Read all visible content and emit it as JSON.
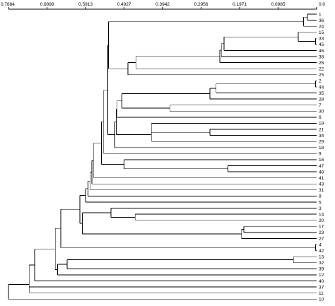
{
  "axis": {
    "ticks": [
      "0.7884",
      "0.6898",
      "0.5913",
      "0.4927",
      "0.3942",
      "0.2956",
      "0.1971",
      "0.0985",
      "0.0"
    ],
    "tick_values": [
      0.7884,
      0.6898,
      0.5913,
      0.4927,
      0.3942,
      0.2956,
      0.1971,
      0.0985,
      0.0
    ],
    "range": [
      0.7884,
      0.0
    ]
  },
  "leaves": [
    "1",
    "36",
    "24",
    "15",
    "33",
    "45",
    "46",
    "38",
    "26",
    "22",
    "25",
    "2",
    "44",
    "35",
    "28",
    "7",
    "30",
    "6",
    "19",
    "21",
    "34",
    "29",
    "18",
    "9",
    "16",
    "47",
    "48",
    "41",
    "43",
    "31",
    "8",
    "5",
    "3",
    "14",
    "20",
    "17",
    "23",
    "27",
    "4",
    "42",
    "13",
    "32",
    "39",
    "12",
    "40",
    "37",
    "11",
    "10"
  ],
  "merges": [
    {
      "a": "L1",
      "b": "L36",
      "h": 0.0235,
      "id": "n1"
    },
    {
      "a": "n1",
      "b": "L24",
      "h": 0.0336,
      "id": "n2"
    },
    {
      "a": "L33",
      "b": "L45",
      "h": 0.0025,
      "id": "n3"
    },
    {
      "a": "L15",
      "b": "n3",
      "h": 0.0471,
      "id": "n4"
    },
    {
      "a": "n4",
      "b": "L46",
      "h": 0.237,
      "id": "n5"
    },
    {
      "a": "n5",
      "b": "L38",
      "h": 0.2438,
      "id": "n6"
    },
    {
      "a": "n6",
      "b": "L26",
      "h": 0.2479,
      "id": "n7"
    },
    {
      "a": "n7",
      "b": "L22",
      "h": 0.4626,
      "id": "n8"
    },
    {
      "a": "n8",
      "b": "L25",
      "h": 0.4829,
      "id": "n9"
    },
    {
      "a": "n2",
      "b": "n9",
      "h": 0.5325,
      "id": "n10"
    },
    {
      "a": "L2",
      "b": "L44",
      "h": 0.0025,
      "id": "n11"
    },
    {
      "a": "n11",
      "b": "L35",
      "h": 0.2571,
      "id": "n12"
    },
    {
      "a": "n12",
      "b": "L28",
      "h": 0.2731,
      "id": "n13"
    },
    {
      "a": "L7",
      "b": "L30",
      "h": 0.3757,
      "id": "n14"
    },
    {
      "a": "n13",
      "b": "n14",
      "h": 0.4984,
      "id": "n15"
    },
    {
      "a": "n15",
      "b": "L6",
      "h": 0.5105,
      "id": "n16"
    },
    {
      "a": "L21",
      "b": "L34",
      "h": 0.2731,
      "id": "n17"
    },
    {
      "a": "L19",
      "b": "n17",
      "h": 0.4226,
      "id": "n18"
    },
    {
      "a": "n18",
      "b": "L29",
      "h": 0.4226,
      "id": "n19"
    },
    {
      "a": "n16",
      "b": "n19",
      "h": 0.5124,
      "id": "n20"
    },
    {
      "a": "n20",
      "b": "L18",
      "h": 0.5162,
      "id": "n21"
    },
    {
      "a": "n10",
      "b": "n21",
      "h": 0.5344,
      "id": "n22"
    },
    {
      "a": "n22",
      "b": "L9",
      "h": 0.5446,
      "id": "n23"
    },
    {
      "a": "L47",
      "b": "L48",
      "h": 0.2269,
      "id": "n24"
    },
    {
      "a": "L16",
      "b": "n24",
      "h": 0.4927,
      "id": "n25"
    },
    {
      "a": "n23",
      "b": "n25",
      "h": 0.5505,
      "id": "n26"
    },
    {
      "a": "n26",
      "b": "L41",
      "h": 0.5709,
      "id": "n27"
    },
    {
      "a": "n27",
      "b": "L43",
      "h": 0.575,
      "id": "n28"
    },
    {
      "a": "n28",
      "b": "L31",
      "h": 0.5791,
      "id": "n29"
    },
    {
      "a": "n29",
      "b": "L8",
      "h": 0.5852,
      "id": "n30"
    },
    {
      "a": "n30",
      "b": "L5",
      "h": 0.5913,
      "id": "n31"
    },
    {
      "a": "L14",
      "b": "L20",
      "h": 0.4642,
      "id": "n32"
    },
    {
      "a": "L3",
      "b": "n32",
      "h": 0.5264,
      "id": "n33"
    },
    {
      "a": "L17",
      "b": "L23",
      "h": 0.1863,
      "id": "n34"
    },
    {
      "a": "n34",
      "b": "L27",
      "h": 0.1923,
      "id": "n35"
    },
    {
      "a": "n33",
      "b": "n35",
      "h": 0.5994,
      "id": "n36"
    },
    {
      "a": "n31",
      "b": "n36",
      "h": 0.6055,
      "id": "n37"
    },
    {
      "a": "L4",
      "b": "L42",
      "h": 0.0025,
      "id": "n38"
    },
    {
      "a": "n37",
      "b": "n38",
      "h": 0.6544,
      "id": "n39"
    },
    {
      "a": "L13",
      "b": "L32",
      "h": 0.0591,
      "id": "n40"
    },
    {
      "a": "n40",
      "b": "L39",
      "h": 0.6383,
      "id": "n41"
    },
    {
      "a": "n41",
      "b": "L12",
      "h": 0.6629,
      "id": "n42"
    },
    {
      "a": "n39",
      "b": "n42",
      "h": 0.6687,
      "id": "n43"
    },
    {
      "a": "n43",
      "b": "L40",
      "h": 0.7213,
      "id": "n44"
    },
    {
      "a": "n44",
      "b": "L37",
      "h": 0.7355,
      "id": "n45"
    },
    {
      "a": "n45",
      "b": "L11",
      "h": 0.7355,
      "id": "n46"
    },
    {
      "a": "n46",
      "b": "L10",
      "h": 0.7884,
      "id": "n47"
    }
  ]
}
